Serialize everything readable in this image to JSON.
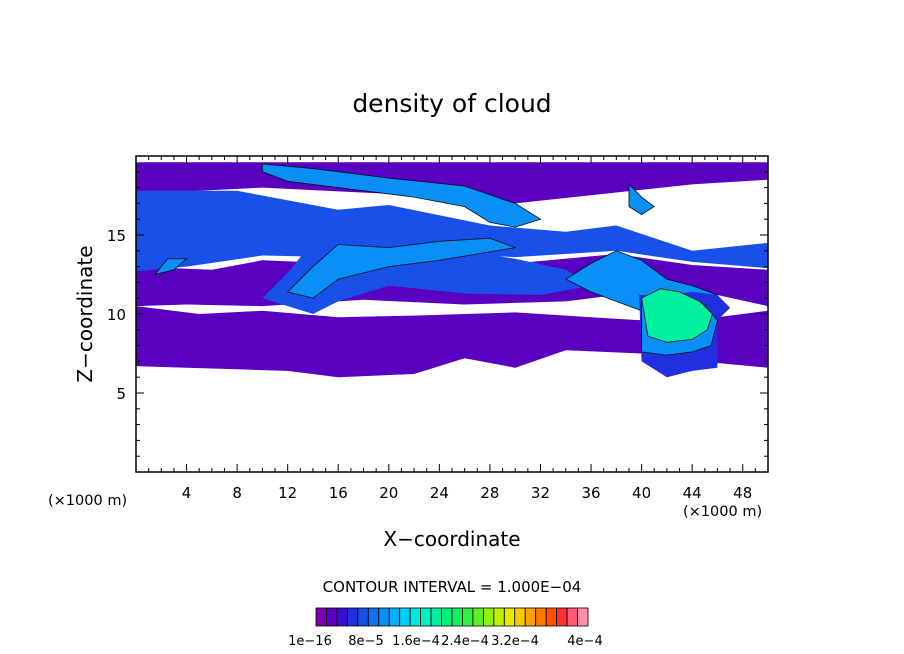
{
  "chart_data": {
    "type": "heatmap",
    "title": "density of cloud",
    "xlabel": "X−coordinate",
    "ylabel": "Z−coordinate",
    "x_unit": "(×1000 m)",
    "y_unit": "(×1000 m)",
    "xlim": [
      0,
      50
    ],
    "ylim": [
      0,
      20
    ],
    "x_ticks": [
      4,
      8,
      12,
      16,
      20,
      24,
      28,
      32,
      36,
      40,
      44,
      48
    ],
    "y_ticks": [
      5,
      10,
      15
    ],
    "contour_interval_label": "CONTOUR INTERVAL = 1.000E−04",
    "colorbar": {
      "labels": [
        "1e−16",
        "8e−5",
        "1.6e−4",
        "2.4e−4",
        "3.2e−4",
        "4e−4"
      ],
      "colors": [
        "#7a00b0",
        "#5a00c0",
        "#3a10d0",
        "#2030e0",
        "#1850ea",
        "#1070f0",
        "#0890f6",
        "#00b0f8",
        "#00d0f0",
        "#00e8e0",
        "#00f0c0",
        "#00f0a0",
        "#00f080",
        "#10f060",
        "#30f040",
        "#60f020",
        "#90f010",
        "#c0f000",
        "#e8e800",
        "#f8c800",
        "#ffa000",
        "#ff7800",
        "#ff5000",
        "#ff3030",
        "#ff5a78",
        "#ff90a8"
      ]
    },
    "cloud_regions": [
      {
        "level": 1,
        "points": [
          [
            0,
            17.6
          ],
          [
            0,
            19.6
          ],
          [
            50,
            19.6
          ],
          [
            50,
            18.5
          ],
          [
            44,
            18.2
          ],
          [
            30,
            17.0
          ],
          [
            20,
            17.6
          ],
          [
            10,
            18.0
          ]
        ]
      },
      {
        "level": 1,
        "points": [
          [
            0,
            10.5
          ],
          [
            0,
            13
          ],
          [
            6,
            12.8
          ],
          [
            10,
            13.4
          ],
          [
            16,
            13.2
          ],
          [
            22,
            13.6
          ],
          [
            30,
            13.2
          ],
          [
            38,
            13.8
          ],
          [
            44,
            13.1
          ],
          [
            50,
            12.8
          ],
          [
            50,
            10.5
          ],
          [
            46,
            11.2
          ],
          [
            40,
            11.4
          ],
          [
            34,
            10.8
          ],
          [
            26,
            10.6
          ],
          [
            18,
            10.9
          ],
          [
            10,
            10.5
          ],
          [
            4,
            10.6
          ]
        ]
      },
      {
        "level": 1,
        "points": [
          [
            0,
            6.7
          ],
          [
            0,
            10.5
          ],
          [
            5,
            10.0
          ],
          [
            10,
            10.2
          ],
          [
            16,
            9.8
          ],
          [
            22,
            9.9
          ],
          [
            30,
            10.1
          ],
          [
            36,
            9.8
          ],
          [
            40,
            9.6
          ],
          [
            46,
            9.8
          ],
          [
            50,
            10.2
          ],
          [
            50,
            6.6
          ],
          [
            46,
            6.9
          ],
          [
            42,
            6.2
          ],
          [
            40,
            7.5
          ],
          [
            34,
            7.7
          ],
          [
            30,
            6.6
          ],
          [
            26,
            7.2
          ],
          [
            22,
            6.2
          ],
          [
            16,
            6.0
          ],
          [
            12,
            6.4
          ],
          [
            8,
            6.5
          ],
          [
            4,
            6.6
          ]
        ]
      },
      {
        "level": 4,
        "points": [
          [
            0,
            12.7
          ],
          [
            0,
            17.8
          ],
          [
            8,
            17.8
          ],
          [
            16,
            16.6
          ],
          [
            20,
            16.9
          ],
          [
            28,
            15.6
          ],
          [
            34,
            15.2
          ],
          [
            38,
            15.6
          ],
          [
            44,
            14.0
          ],
          [
            50,
            14.5
          ],
          [
            50,
            12.9
          ],
          [
            44,
            13.3
          ],
          [
            38,
            14.0
          ],
          [
            30,
            13.6
          ],
          [
            22,
            13.9
          ],
          [
            16,
            13.6
          ],
          [
            10,
            13.7
          ],
          [
            4,
            13.0
          ]
        ]
      },
      {
        "level": 4,
        "points": [
          [
            10,
            11
          ],
          [
            12,
            12.6
          ],
          [
            14,
            14.6
          ],
          [
            18,
            15.0
          ],
          [
            22,
            14.4
          ],
          [
            26,
            14.0
          ],
          [
            30,
            13.5
          ],
          [
            34,
            12.8
          ],
          [
            36,
            11.8
          ],
          [
            32,
            11.2
          ],
          [
            26,
            11.3
          ],
          [
            20,
            11.8
          ],
          [
            16,
            10.8
          ],
          [
            14,
            10.0
          ],
          [
            12,
            10.5
          ]
        ]
      },
      {
        "level": 6,
        "points": [
          [
            10,
            19.5
          ],
          [
            14,
            19.2
          ],
          [
            20,
            18.6
          ],
          [
            26,
            18.1
          ],
          [
            30,
            17.0
          ],
          [
            32,
            16.0
          ],
          [
            30,
            15.5
          ],
          [
            28,
            15.8
          ],
          [
            26,
            16.8
          ],
          [
            22,
            17.4
          ],
          [
            16,
            18.0
          ],
          [
            12,
            18.4
          ],
          [
            10,
            19.0
          ]
        ]
      },
      {
        "level": 6,
        "points": [
          [
            12,
            11.4
          ],
          [
            14,
            13.0
          ],
          [
            16,
            14.4
          ],
          [
            20,
            14.2
          ],
          [
            24,
            14.6
          ],
          [
            28,
            14.8
          ],
          [
            30,
            14.2
          ],
          [
            24,
            13.4
          ],
          [
            20,
            13.0
          ],
          [
            16,
            12.2
          ],
          [
            14,
            11.0
          ]
        ]
      },
      {
        "level": 6,
        "points": [
          [
            34,
            12.2
          ],
          [
            36,
            13.2
          ],
          [
            38,
            14.0
          ],
          [
            40,
            13.4
          ],
          [
            42,
            12.2
          ],
          [
            44,
            11.8
          ],
          [
            46,
            11.2
          ],
          [
            44,
            10.4
          ],
          [
            40,
            10.2
          ],
          [
            38,
            10.8
          ],
          [
            36,
            11.4
          ]
        ]
      },
      {
        "level": 6,
        "points": [
          [
            1.5,
            12.5
          ],
          [
            2.5,
            13.5
          ],
          [
            4,
            13.5
          ],
          [
            3,
            12.8
          ]
        ]
      },
      {
        "level": 6,
        "points": [
          [
            39,
            18.2
          ],
          [
            40,
            17.4
          ],
          [
            41,
            16.8
          ],
          [
            40,
            16.3
          ],
          [
            39,
            16.8
          ]
        ]
      },
      {
        "level": 3,
        "points": [
          [
            39.8,
            11.2
          ],
          [
            40,
            7.0
          ],
          [
            42,
            6.0
          ],
          [
            44,
            6.4
          ],
          [
            46,
            6.6
          ],
          [
            46,
            9.6
          ],
          [
            47,
            10.4
          ],
          [
            46,
            11.2
          ],
          [
            44,
            11.4
          ],
          [
            42,
            11.2
          ]
        ]
      },
      {
        "level": 6,
        "points": [
          [
            40,
            10.8
          ],
          [
            40,
            7.6
          ],
          [
            42,
            7.4
          ],
          [
            44,
            7.6
          ],
          [
            45.5,
            8.0
          ],
          [
            46,
            9.6
          ],
          [
            45,
            10.6
          ],
          [
            43,
            11.0
          ],
          [
            41,
            11.0
          ]
        ]
      },
      {
        "level": 11,
        "points": [
          [
            40,
            11.0
          ],
          [
            40.5,
            8.6
          ],
          [
            42,
            8.2
          ],
          [
            44,
            8.4
          ],
          [
            45.2,
            9.0
          ],
          [
            45.6,
            10.0
          ],
          [
            44.6,
            10.8
          ],
          [
            43,
            11.4
          ],
          [
            41.5,
            11.6
          ]
        ]
      }
    ]
  }
}
